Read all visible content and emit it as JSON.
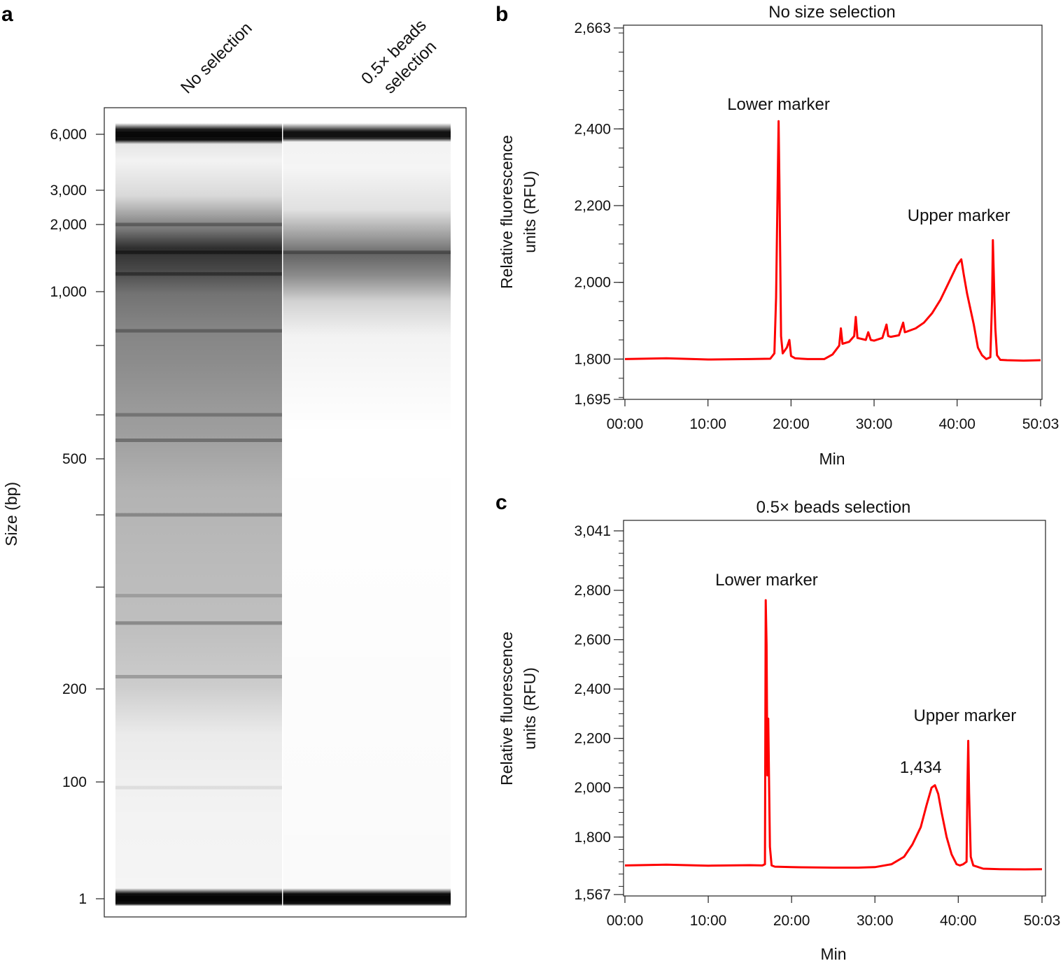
{
  "panels": {
    "a": "a",
    "b": "b",
    "c": "c"
  },
  "chart_data": [
    {
      "panel": "a",
      "type": "heatmap",
      "ylabel": "Size (bp)",
      "lanes": [
        "No selection",
        "0.5× beads selection"
      ],
      "lane2_lines": [
        "0.5× beads",
        "selection"
      ],
      "ytick_labels": [
        {
          "value": 6000,
          "label": "6,000"
        },
        {
          "value": 3000,
          "label": "3,000"
        },
        {
          "value": 2000,
          "label": "2,000"
        },
        {
          "value": 1000,
          "label": "1,000"
        },
        {
          "value": 500,
          "label": "500"
        },
        {
          "value": 200,
          "label": "200"
        },
        {
          "value": 100,
          "label": "100"
        },
        {
          "value": 1,
          "label": "1"
        }
      ],
      "minor_ticks": [
        800,
        600,
        400,
        300
      ],
      "bands": {
        "No selection": [
          {
            "size": 6000,
            "intensity": 1.0
          },
          {
            "size": 2000,
            "intensity": 0.55
          },
          {
            "size": 1500,
            "intensity": 0.85
          },
          {
            "size": 1200,
            "intensity": 0.7
          },
          {
            "size": 850,
            "intensity": 0.5
          },
          {
            "size": 600,
            "intensity": 0.45
          },
          {
            "size": 540,
            "intensity": 0.55
          },
          {
            "size": 400,
            "intensity": 0.45
          },
          {
            "size": 290,
            "intensity": 0.3
          },
          {
            "size": 260,
            "intensity": 0.5
          },
          {
            "size": 210,
            "intensity": 0.4
          },
          {
            "size": 80,
            "intensity": 0.15
          },
          {
            "size": 1,
            "intensity": 1.0
          }
        ],
        "0.5× beads selection": [
          {
            "size": 6000,
            "intensity": 0.95
          },
          {
            "size": 1500,
            "intensity": 0.6
          },
          {
            "size": 1,
            "intensity": 1.0
          }
        ]
      }
    },
    {
      "panel": "b",
      "type": "line",
      "title": "No size selection",
      "xlabel": "Min",
      "ylabel_lines": [
        "Relative fluorescence",
        "units (RFU)"
      ],
      "xtick_labels": [
        "00:00",
        "10:00",
        "20:00",
        "30:00",
        "40:00",
        "50:03"
      ],
      "xlim": [
        0,
        50.05
      ],
      "ylim": [
        1695,
        2663
      ],
      "ytick_labels": [
        {
          "value": 2663,
          "label": "2,663"
        },
        {
          "value": 2400,
          "label": "2,400"
        },
        {
          "value": 2200,
          "label": "2,200"
        },
        {
          "value": 2000,
          "label": "2,000"
        },
        {
          "value": 1800,
          "label": "1,800"
        },
        {
          "value": 1695,
          "label": "1,695"
        }
      ],
      "annotations": [
        {
          "text": "Lower marker",
          "x": 18.5,
          "y": 2450
        },
        {
          "text": "Upper marker",
          "x": 40.2,
          "y": 2160
        }
      ],
      "series": [
        {
          "color": "#ff0000",
          "x": [
            0,
            5,
            10,
            15,
            17.5,
            18.0,
            18.2,
            18.4,
            18.5,
            18.6,
            18.8,
            19.0,
            19.5,
            19.8,
            20.0,
            20.5,
            22,
            24,
            25,
            25.8,
            26.0,
            26.2,
            27,
            27.6,
            27.8,
            28.0,
            29,
            29.3,
            29.6,
            30,
            31,
            31.5,
            31.7,
            32,
            33,
            33.5,
            33.7,
            34,
            35,
            36,
            37,
            38,
            39,
            40,
            40.5,
            40.8,
            41.2,
            42,
            42.5,
            43,
            43.5,
            44.0,
            44.2,
            44.3,
            44.5,
            44.6,
            44.8,
            45.2,
            46,
            48,
            50.05
          ],
          "y": [
            1800,
            1802,
            1799,
            1800,
            1801,
            1815,
            1960,
            2270,
            2420,
            2270,
            1860,
            1815,
            1830,
            1850,
            1808,
            1802,
            1800,
            1800,
            1812,
            1835,
            1880,
            1840,
            1845,
            1860,
            1910,
            1855,
            1850,
            1870,
            1850,
            1848,
            1855,
            1890,
            1860,
            1858,
            1862,
            1895,
            1870,
            1872,
            1880,
            1895,
            1920,
            1955,
            2000,
            2045,
            2060,
            2020,
            1970,
            1890,
            1830,
            1810,
            1800,
            1805,
            1950,
            2110,
            1950,
            1880,
            1810,
            1798,
            1797,
            1796,
            1797
          ]
        }
      ]
    },
    {
      "panel": "c",
      "type": "line",
      "title": "0.5× beads selection",
      "xlabel": "Min",
      "ylabel_lines": [
        "Relative fluorescence",
        "units (RFU)"
      ],
      "xtick_labels": [
        "00:00",
        "10:00",
        "20:00",
        "30:00",
        "40:00",
        "50:03"
      ],
      "xlim": [
        0,
        50.05
      ],
      "ylim": [
        1567,
        3041
      ],
      "ytick_labels": [
        {
          "value": 3041,
          "label": "3,041"
        },
        {
          "value": 2800,
          "label": "2,800"
        },
        {
          "value": 2600,
          "label": "2,600"
        },
        {
          "value": 2400,
          "label": "2,400"
        },
        {
          "value": 2200,
          "label": "2,200"
        },
        {
          "value": 2000,
          "label": "2,000"
        },
        {
          "value": 1800,
          "label": "1,800"
        },
        {
          "value": 1567,
          "label": "1,567"
        }
      ],
      "annotations": [
        {
          "text": "Lower marker",
          "x": 17.0,
          "y": 2820
        },
        {
          "text": "Upper marker",
          "x": 40.8,
          "y": 2270
        },
        {
          "text": "1,434",
          "x": 35.5,
          "y": 2060
        }
      ],
      "series": [
        {
          "color": "#ff0000",
          "x": [
            0,
            5,
            10,
            15,
            16.5,
            16.8,
            16.9,
            17.0,
            17.1,
            17.2,
            17.4,
            17.6,
            18,
            20,
            25,
            28,
            30,
            32,
            33.5,
            34.5,
            35.5,
            36.2,
            36.8,
            37.2,
            37.6,
            38,
            38.6,
            39.2,
            39.8,
            40.2,
            40.6,
            41.0,
            41.1,
            41.2,
            41.3,
            41.5,
            41.8,
            43,
            45,
            48,
            50.05
          ],
          "y": [
            1685,
            1688,
            1684,
            1686,
            1685,
            1690,
            2760,
            2580,
            2050,
            2280,
            1760,
            1685,
            1680,
            1678,
            1676,
            1676,
            1678,
            1690,
            1720,
            1770,
            1840,
            1930,
            2000,
            2010,
            1975,
            1900,
            1800,
            1730,
            1690,
            1685,
            1690,
            1700,
            2000,
            2190,
            1980,
            1720,
            1685,
            1672,
            1670,
            1669,
            1670
          ]
        }
      ]
    }
  ]
}
